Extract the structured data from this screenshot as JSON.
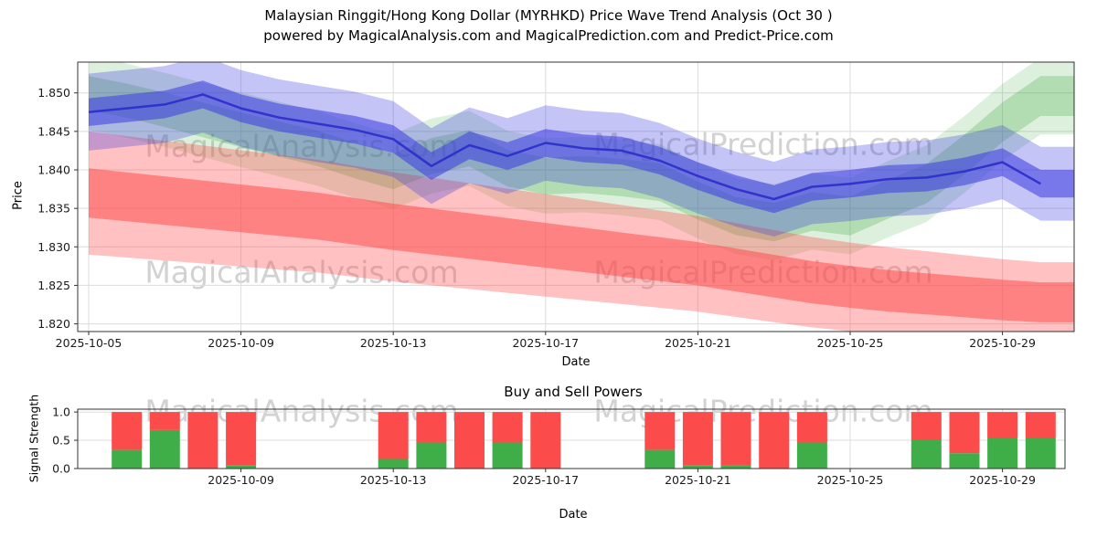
{
  "header": {
    "title_line1": "Malaysian Ringgit/Hong Kong Dollar (MYRHKD) Price Wave Trend Analysis (Oct 30 )",
    "title_line2": "powered by MagicalAnalysis.com and MagicalPrediction.com and Predict-Price.com"
  },
  "watermarks": {
    "analysis": "MagicalAnalysis.com",
    "prediction": "MagicalPrediction.com"
  },
  "colors": {
    "blue_band": "#3a3ae0",
    "blue_line": "#2828c8",
    "red_band": "#ff4444",
    "green_band": "#44aa44",
    "bar_buy": "#3fae49",
    "bar_sell": "#fb4b4b",
    "grid": "#dcdcdc",
    "spine": "#333333",
    "tick_text": "#1a1a1a"
  },
  "chart_data": [
    {
      "type": "area",
      "name": "price_wave_trend",
      "xlabel": "Date",
      "ylabel": "Price",
      "ylim": [
        1.819,
        1.854
      ],
      "yticks": [
        1.82,
        1.825,
        1.83,
        1.835,
        1.84,
        1.845,
        1.85
      ],
      "ytick_labels": [
        "1.820",
        "1.825",
        "1.830",
        "1.835",
        "1.840",
        "1.845",
        "1.850"
      ],
      "xticks": [
        "2025-10-05",
        "2025-10-09",
        "2025-10-13",
        "2025-10-17",
        "2025-10-21",
        "2025-10-25",
        "2025-10-29"
      ],
      "dates": [
        "2025-10-05",
        "2025-10-06",
        "2025-10-07",
        "2025-10-08",
        "2025-10-09",
        "2025-10-10",
        "2025-10-11",
        "2025-10-12",
        "2025-10-13",
        "2025-10-14",
        "2025-10-15",
        "2025-10-16",
        "2025-10-17",
        "2025-10-18",
        "2025-10-19",
        "2025-10-20",
        "2025-10-21",
        "2025-10-22",
        "2025-10-23",
        "2025-10-24",
        "2025-10-25",
        "2025-10-26",
        "2025-10-27",
        "2025-10-28",
        "2025-10-29",
        "2025-10-30"
      ],
      "series": [
        {
          "name": "blue_trend",
          "color_key": "blue_band",
          "values": [
            1.8475,
            1.848,
            1.8485,
            1.8498,
            1.848,
            1.8468,
            1.846,
            1.8452,
            1.844,
            1.8405,
            1.8432,
            1.8418,
            1.8435,
            1.8428,
            1.8425,
            1.8412,
            1.8392,
            1.8375,
            1.8362,
            1.8378,
            1.8382,
            1.8388,
            1.839,
            1.8398,
            1.841,
            1.8382
          ]
        },
        {
          "name": "red_trend",
          "color_key": "red_band",
          "values": [
            1.837,
            1.8365,
            1.836,
            1.8355,
            1.835,
            1.8345,
            1.834,
            1.8333,
            1.8326,
            1.832,
            1.8314,
            1.8308,
            1.8302,
            1.8296,
            1.829,
            1.8284,
            1.8278,
            1.827,
            1.8262,
            1.8254,
            1.8248,
            1.8243,
            1.8239,
            1.8235,
            1.8231,
            1.8228
          ]
        },
        {
          "name": "green_trend",
          "color_key": "green_band",
          "values": [
            1.85,
            1.849,
            1.8478,
            1.8465,
            1.8452,
            1.844,
            1.8428,
            1.8412,
            1.8398,
            1.8418,
            1.8428,
            1.8402,
            1.8392,
            1.8394,
            1.839,
            1.8384,
            1.836,
            1.834,
            1.8332,
            1.8346,
            1.834,
            1.8362,
            1.8382,
            1.842,
            1.8462,
            1.8496
          ]
        }
      ],
      "bands": [
        {
          "series": "green_trend",
          "hw_start": 0.0048,
          "hw_end": 0.005,
          "opacity": 0.18
        },
        {
          "series": "green_trend",
          "hw_start": 0.0022,
          "hw_end": 0.0026,
          "opacity": 0.28
        },
        {
          "series": "red_trend",
          "hw_start": 0.008,
          "hw_end": 0.0052,
          "opacity": 0.33
        },
        {
          "series": "red_trend",
          "hw_start": 0.0032,
          "hw_end": 0.0026,
          "opacity": 0.5
        },
        {
          "series": "blue_trend",
          "hw_start": 0.005,
          "hw_end": 0.0048,
          "opacity": 0.3
        },
        {
          "series": "blue_trend",
          "hw_start": 0.0018,
          "hw_end": 0.0018,
          "opacity": 0.55
        }
      ],
      "line": {
        "series": "blue_trend",
        "width": 2.5,
        "opacity": 0.85
      }
    },
    {
      "type": "bar",
      "name": "buy_sell_powers",
      "title": "Buy and Sell Powers",
      "xlabel": "Date",
      "ylabel": "Signal Strength",
      "ylim": [
        0,
        1.05
      ],
      "yticks": [
        0.0,
        0.5,
        1.0
      ],
      "ytick_labels": [
        "0.0",
        "0.5",
        "1.0"
      ],
      "xticks": [
        "2025-10-09",
        "2025-10-13",
        "2025-10-17",
        "2025-10-21",
        "2025-10-25",
        "2025-10-29"
      ],
      "categories": [
        "2025-10-06",
        "2025-10-07",
        "2025-10-08",
        "2025-10-09",
        "2025-10-13",
        "2025-10-14",
        "2025-10-15",
        "2025-10-16",
        "2025-10-17",
        "2025-10-20",
        "2025-10-21",
        "2025-10-22",
        "2025-10-23",
        "2025-10-24",
        "2025-10-27",
        "2025-10-28",
        "2025-10-29",
        "2025-10-30"
      ],
      "series": [
        {
          "name": "buy",
          "values": [
            0.33,
            0.68,
            0.0,
            0.06,
            0.17,
            0.46,
            0.0,
            0.46,
            0.0,
            0.33,
            0.06,
            0.05,
            0.0,
            0.46,
            0.5,
            0.27,
            0.55,
            0.55
          ]
        },
        {
          "name": "sell",
          "values": [
            0.67,
            0.32,
            1.0,
            0.94,
            0.83,
            0.54,
            1.0,
            0.54,
            1.0,
            0.67,
            0.94,
            0.95,
            1.0,
            0.54,
            0.5,
            0.73,
            0.45,
            0.45
          ]
        }
      ]
    }
  ]
}
